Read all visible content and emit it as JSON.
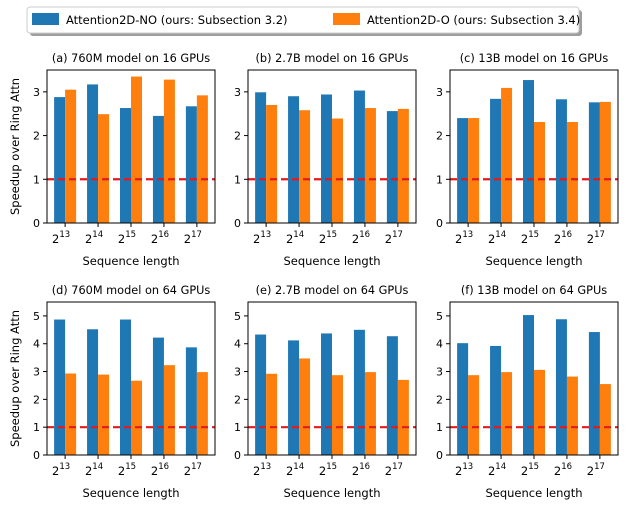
{
  "legend": {
    "entries": [
      {
        "label": "Attention2D-NO (ours: Subsection 3.2)",
        "color": "#1f77b4"
      },
      {
        "label": "Attention2D-O (ours: Subsection 3.4)",
        "color": "#ff7f0e"
      }
    ]
  },
  "reference_color": "#e41a1c",
  "chart_data": [
    {
      "type": "bar",
      "title": "(a) 760M model on 16 GPUs",
      "xlabel": "Sequence length",
      "ylabel": "Speedup over Ring Attn",
      "categories": [
        "13",
        "14",
        "15",
        "16",
        "17"
      ],
      "category_base": "2",
      "ylim": [
        0,
        3.5
      ],
      "yticks": [
        "0",
        "1",
        "2",
        "3"
      ],
      "reference_line": 1,
      "series": [
        {
          "name": "Attention2D-NO (ours: Subsection 3.2)",
          "values": [
            2.88,
            3.17,
            2.63,
            2.45,
            2.67
          ]
        },
        {
          "name": "Attention2D-O (ours: Subsection 3.4)",
          "values": [
            3.05,
            2.49,
            3.35,
            3.28,
            2.92
          ]
        }
      ]
    },
    {
      "type": "bar",
      "title": "(b) 2.7B model on 16 GPUs",
      "xlabel": "Sequence length",
      "ylabel": "",
      "categories": [
        "13",
        "14",
        "15",
        "16",
        "17"
      ],
      "category_base": "2",
      "ylim": [
        0,
        3.5
      ],
      "yticks": [
        "0",
        "1",
        "2",
        "3"
      ],
      "reference_line": 1,
      "series": [
        {
          "name": "Attention2D-NO (ours: Subsection 3.2)",
          "values": [
            2.99,
            2.9,
            2.94,
            3.03,
            2.56
          ]
        },
        {
          "name": "Attention2D-O (ours: Subsection 3.4)",
          "values": [
            2.7,
            2.58,
            2.39,
            2.63,
            2.61
          ]
        }
      ]
    },
    {
      "type": "bar",
      "title": "(c) 13B model on 16 GPUs",
      "xlabel": "Sequence length",
      "ylabel": "",
      "categories": [
        "13",
        "14",
        "15",
        "16",
        "17"
      ],
      "category_base": "2",
      "ylim": [
        0,
        3.5
      ],
      "yticks": [
        "0",
        "1",
        "2",
        "3"
      ],
      "reference_line": 1,
      "series": [
        {
          "name": "Attention2D-NO (ours: Subsection 3.2)",
          "values": [
            2.4,
            2.84,
            3.27,
            2.83,
            2.76
          ]
        },
        {
          "name": "Attention2D-O (ours: Subsection 3.4)",
          "values": [
            2.4,
            3.09,
            2.31,
            2.31,
            2.77
          ]
        }
      ]
    },
    {
      "type": "bar",
      "title": "(d) 760M model on 64 GPUs",
      "xlabel": "Sequence length",
      "ylabel": "Speedup over Ring Attn",
      "categories": [
        "13",
        "14",
        "15",
        "16",
        "17"
      ],
      "category_base": "2",
      "ylim": [
        0,
        5.5
      ],
      "yticks": [
        "0",
        "1",
        "2",
        "3",
        "4",
        "5"
      ],
      "reference_line": 1,
      "series": [
        {
          "name": "Attention2D-NO (ours: Subsection 3.2)",
          "values": [
            4.87,
            4.52,
            4.87,
            4.22,
            3.87
          ]
        },
        {
          "name": "Attention2D-O (ours: Subsection 3.4)",
          "values": [
            2.93,
            2.89,
            2.67,
            3.23,
            2.98
          ]
        }
      ]
    },
    {
      "type": "bar",
      "title": "(e) 2.7B model on 64 GPUs",
      "xlabel": "Sequence length",
      "ylabel": "",
      "categories": [
        "13",
        "14",
        "15",
        "16",
        "17"
      ],
      "category_base": "2",
      "ylim": [
        0,
        5.5
      ],
      "yticks": [
        "0",
        "1",
        "2",
        "3",
        "4",
        "5"
      ],
      "reference_line": 1,
      "series": [
        {
          "name": "Attention2D-NO (ours: Subsection 3.2)",
          "values": [
            4.33,
            4.12,
            4.37,
            4.5,
            4.27
          ]
        },
        {
          "name": "Attention2D-O (ours: Subsection 3.4)",
          "values": [
            2.92,
            3.47,
            2.87,
            2.98,
            2.7
          ]
        }
      ]
    },
    {
      "type": "bar",
      "title": "(f) 13B model on 64 GPUs",
      "xlabel": "Sequence length",
      "ylabel": "",
      "categories": [
        "13",
        "14",
        "15",
        "16",
        "17"
      ],
      "category_base": "2",
      "ylim": [
        0,
        5.5
      ],
      "yticks": [
        "0",
        "1",
        "2",
        "3",
        "4",
        "5"
      ],
      "reference_line": 1,
      "series": [
        {
          "name": "Attention2D-NO (ours: Subsection 3.2)",
          "values": [
            4.02,
            3.92,
            5.03,
            4.88,
            4.42
          ]
        },
        {
          "name": "Attention2D-O (ours: Subsection 3.4)",
          "values": [
            2.87,
            2.98,
            3.06,
            2.82,
            2.55
          ]
        }
      ]
    }
  ]
}
